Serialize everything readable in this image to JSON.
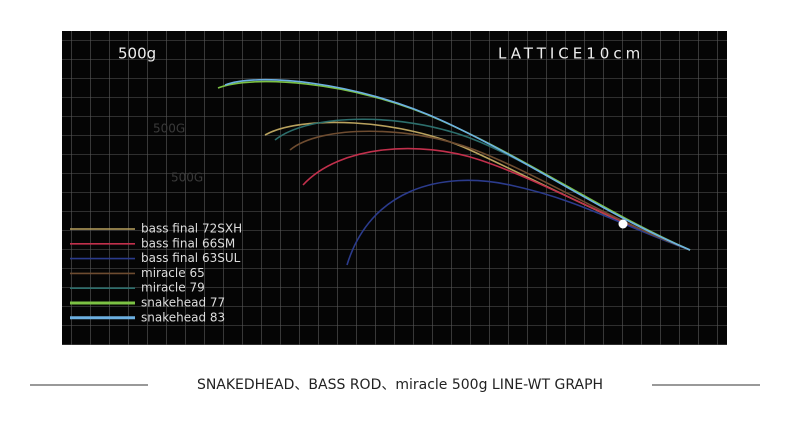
{
  "panel": {
    "load_label": "500g",
    "lattice_label": "LATTICE10cm",
    "faint_labels": [
      "500G",
      "500G"
    ]
  },
  "legend": [
    {
      "name": "bass final 72SXH",
      "color": "#b9a25e"
    },
    {
      "name": "bass final 66SM",
      "color": "#c2304c"
    },
    {
      "name": "bass final 63SUL",
      "color": "#2b3b8c"
    },
    {
      "name": "miracle 65",
      "color": "#6e4c30"
    },
    {
      "name": "miracle 79",
      "color": "#2c6e6c"
    },
    {
      "name": "snakehead 77",
      "color": "#7cc244"
    },
    {
      "name": "snakehead 83",
      "color": "#6cb0e2"
    }
  ],
  "caption": "SNAKEDHEAD、BASS ROD、miracle 500g LINE-WT GRAPH"
}
